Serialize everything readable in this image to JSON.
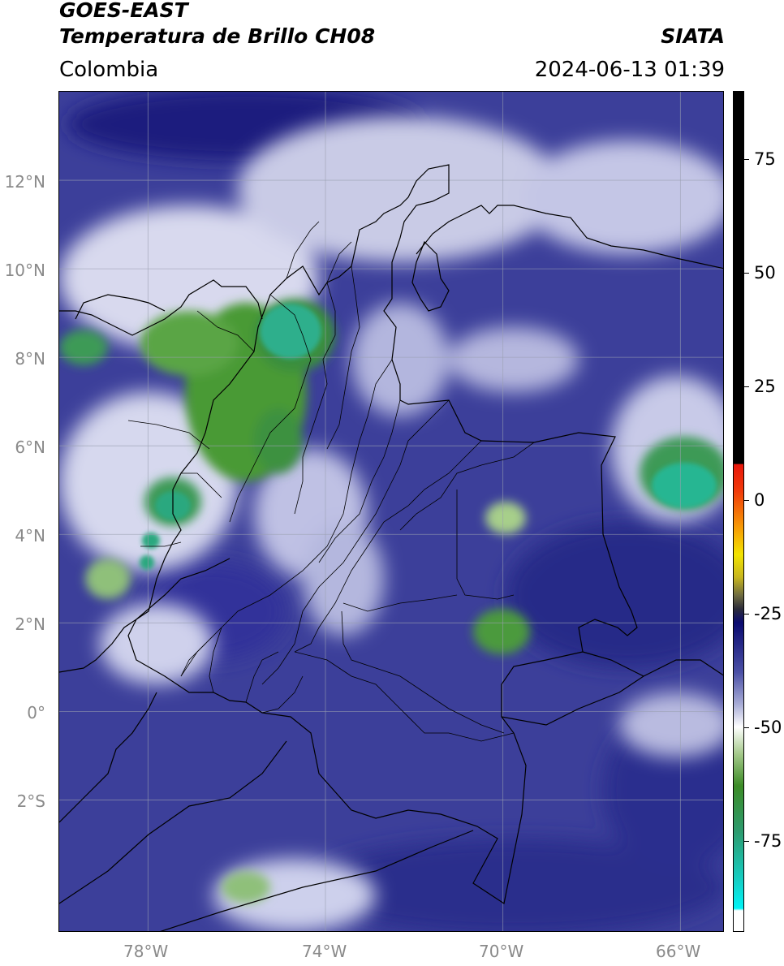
{
  "header": {
    "title_line1": "GOES-EAST",
    "title_line2": "Temperatura de Brillo CH08",
    "region": "Colombia",
    "brand": "SIATA",
    "datetime": "2024-06-13 01:39"
  },
  "map": {
    "lat_labels": [
      "12°N",
      "10°N",
      "8°N",
      "6°N",
      "4°N",
      "2°N",
      "0°",
      "2°S"
    ],
    "lon_labels": [
      "78°W",
      "74°W",
      "70°W",
      "66°W"
    ],
    "extent_lon": [
      -80,
      -65
    ],
    "extent_lat": [
      -5,
      14
    ],
    "colors": {
      "background_blue": "#3c3f9a",
      "cloud_white": "#e8e8f2",
      "cloud_green": "#4e9a3a",
      "cold_core": "#2fb38f"
    }
  },
  "colorbar": {
    "range": [
      -95,
      90
    ],
    "tick_values": [
      75,
      50,
      25,
      0,
      -25,
      -50,
      -75
    ],
    "tick_labels": [
      "75",
      "50",
      "25",
      "0",
      "-25",
      "-50",
      "-75"
    ],
    "stops": [
      {
        "v": 90,
        "c": "#000000"
      },
      {
        "v": 8,
        "c": "#000000"
      },
      {
        "v": 7.9,
        "c": "#e8170b"
      },
      {
        "v": 2,
        "c": "#f13a0a"
      },
      {
        "v": -6,
        "c": "#f79a05"
      },
      {
        "v": -12,
        "c": "#f3e400"
      },
      {
        "v": -17,
        "c": "#c8b61e"
      },
      {
        "v": -21,
        "c": "#6f6b40"
      },
      {
        "v": -24,
        "c": "#2c2c3a"
      },
      {
        "v": -27,
        "c": "#0a0a70"
      },
      {
        "v": -38,
        "c": "#4b50a6"
      },
      {
        "v": -45,
        "c": "#a8acd6"
      },
      {
        "v": -50,
        "c": "#ffffff"
      },
      {
        "v": -56,
        "c": "#a4c98a"
      },
      {
        "v": -63,
        "c": "#3c8c26"
      },
      {
        "v": -73,
        "c": "#2d9b6e"
      },
      {
        "v": -84,
        "c": "#14d0c6"
      },
      {
        "v": -90,
        "c": "#00f3f6"
      },
      {
        "v": -90.5,
        "c": "#ffffff"
      },
      {
        "v": -95,
        "c": "#ffffff"
      }
    ]
  }
}
